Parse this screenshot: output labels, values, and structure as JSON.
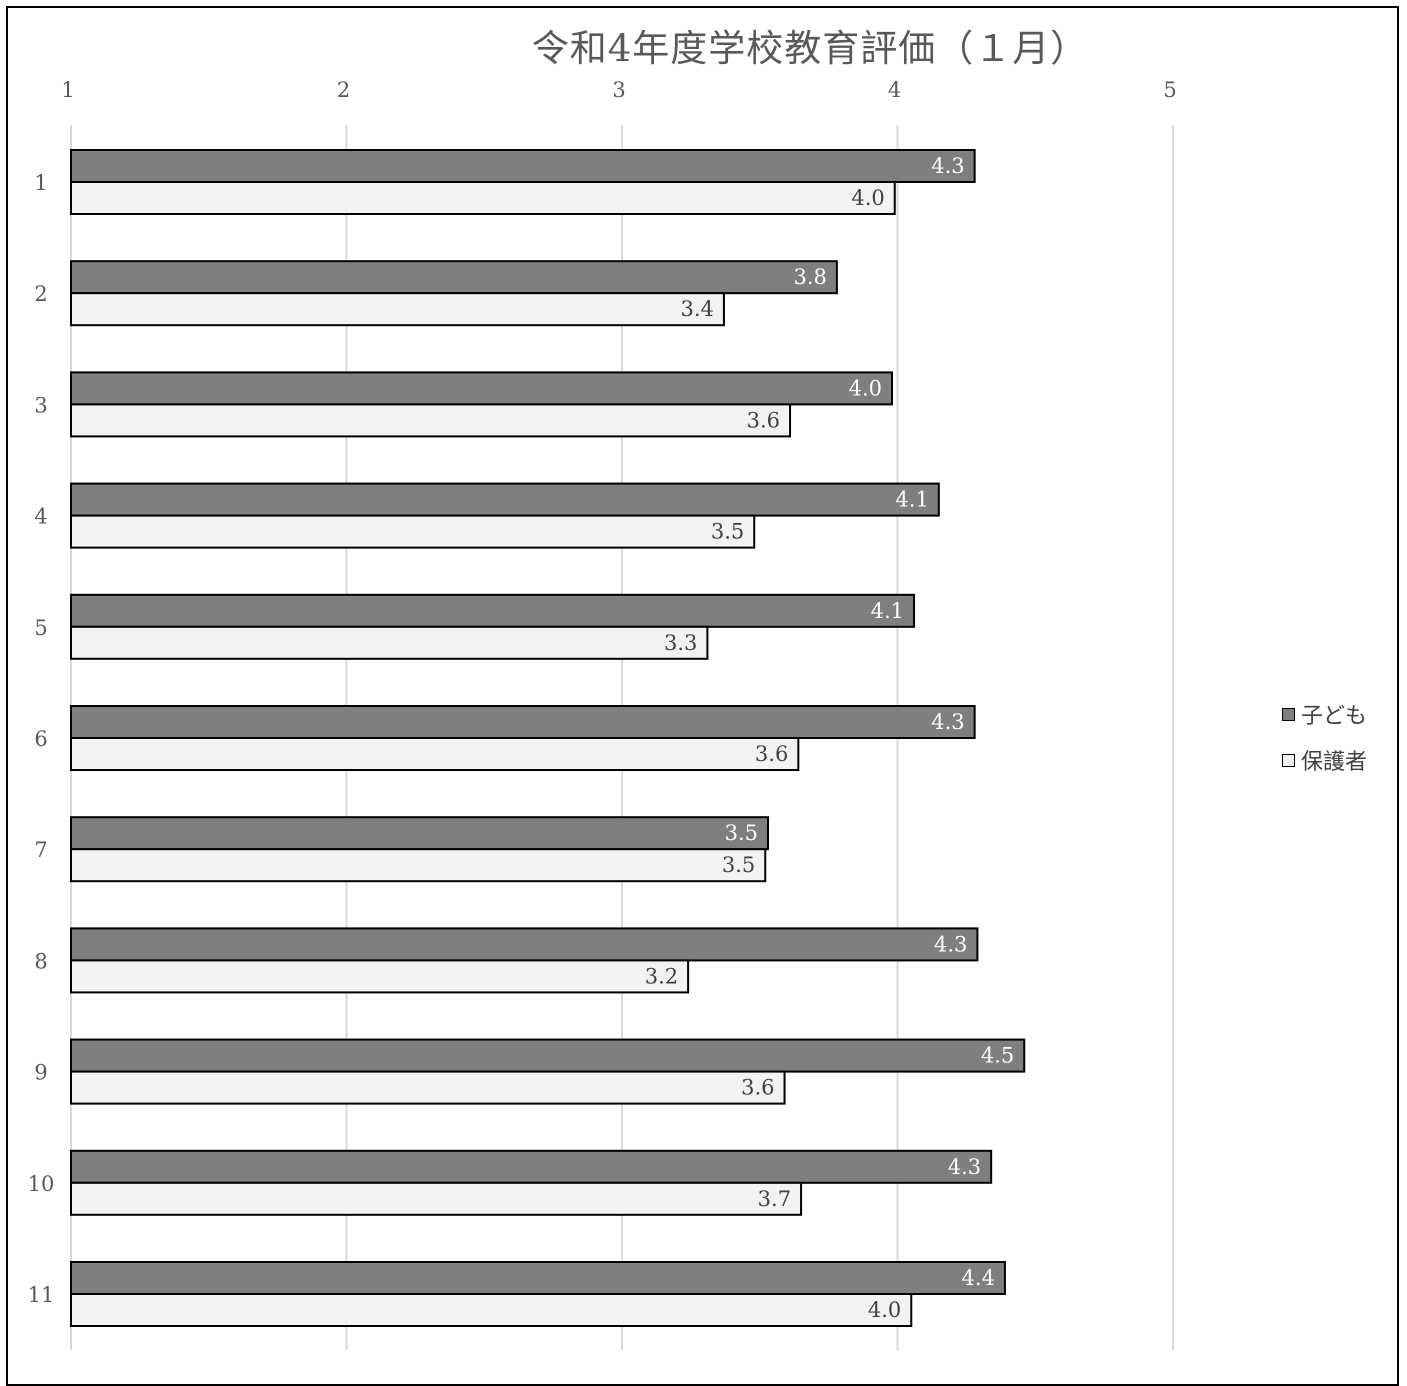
{
  "chart_data": {
    "type": "bar",
    "orientation": "horizontal",
    "title": "令和4年度学校教育評価（１月）",
    "categories": [
      "1",
      "2",
      "3",
      "4",
      "5",
      "6",
      "7",
      "8",
      "9",
      "10",
      "11"
    ],
    "series": [
      {
        "name": "子ども",
        "color": "#7f7f7f",
        "label_color": "#ffffff",
        "values": [
          4.28,
          3.78,
          3.98,
          4.15,
          4.06,
          4.28,
          3.53,
          4.29,
          4.46,
          4.34,
          4.39
        ],
        "labels": [
          "4.3",
          "3.8",
          "4.0",
          "4.1",
          "4.1",
          "4.3",
          "3.5",
          "4.3",
          "4.5",
          "4.3",
          "4.4"
        ]
      },
      {
        "name": "保護者",
        "color": "#f2f2f2",
        "label_color": "#404040",
        "values": [
          3.99,
          3.37,
          3.61,
          3.48,
          3.31,
          3.64,
          3.52,
          3.24,
          3.59,
          3.65,
          4.05
        ],
        "labels": [
          "4.0",
          "3.4",
          "3.6",
          "3.5",
          "3.3",
          "3.6",
          "3.5",
          "3.2",
          "3.6",
          "3.7",
          "4.0"
        ]
      }
    ],
    "xaxis": {
      "min": 1,
      "max": 5,
      "ticks": [
        "1",
        "2",
        "3",
        "4",
        "5"
      ],
      "position": "top"
    },
    "grid": true,
    "legend_position": "right"
  }
}
